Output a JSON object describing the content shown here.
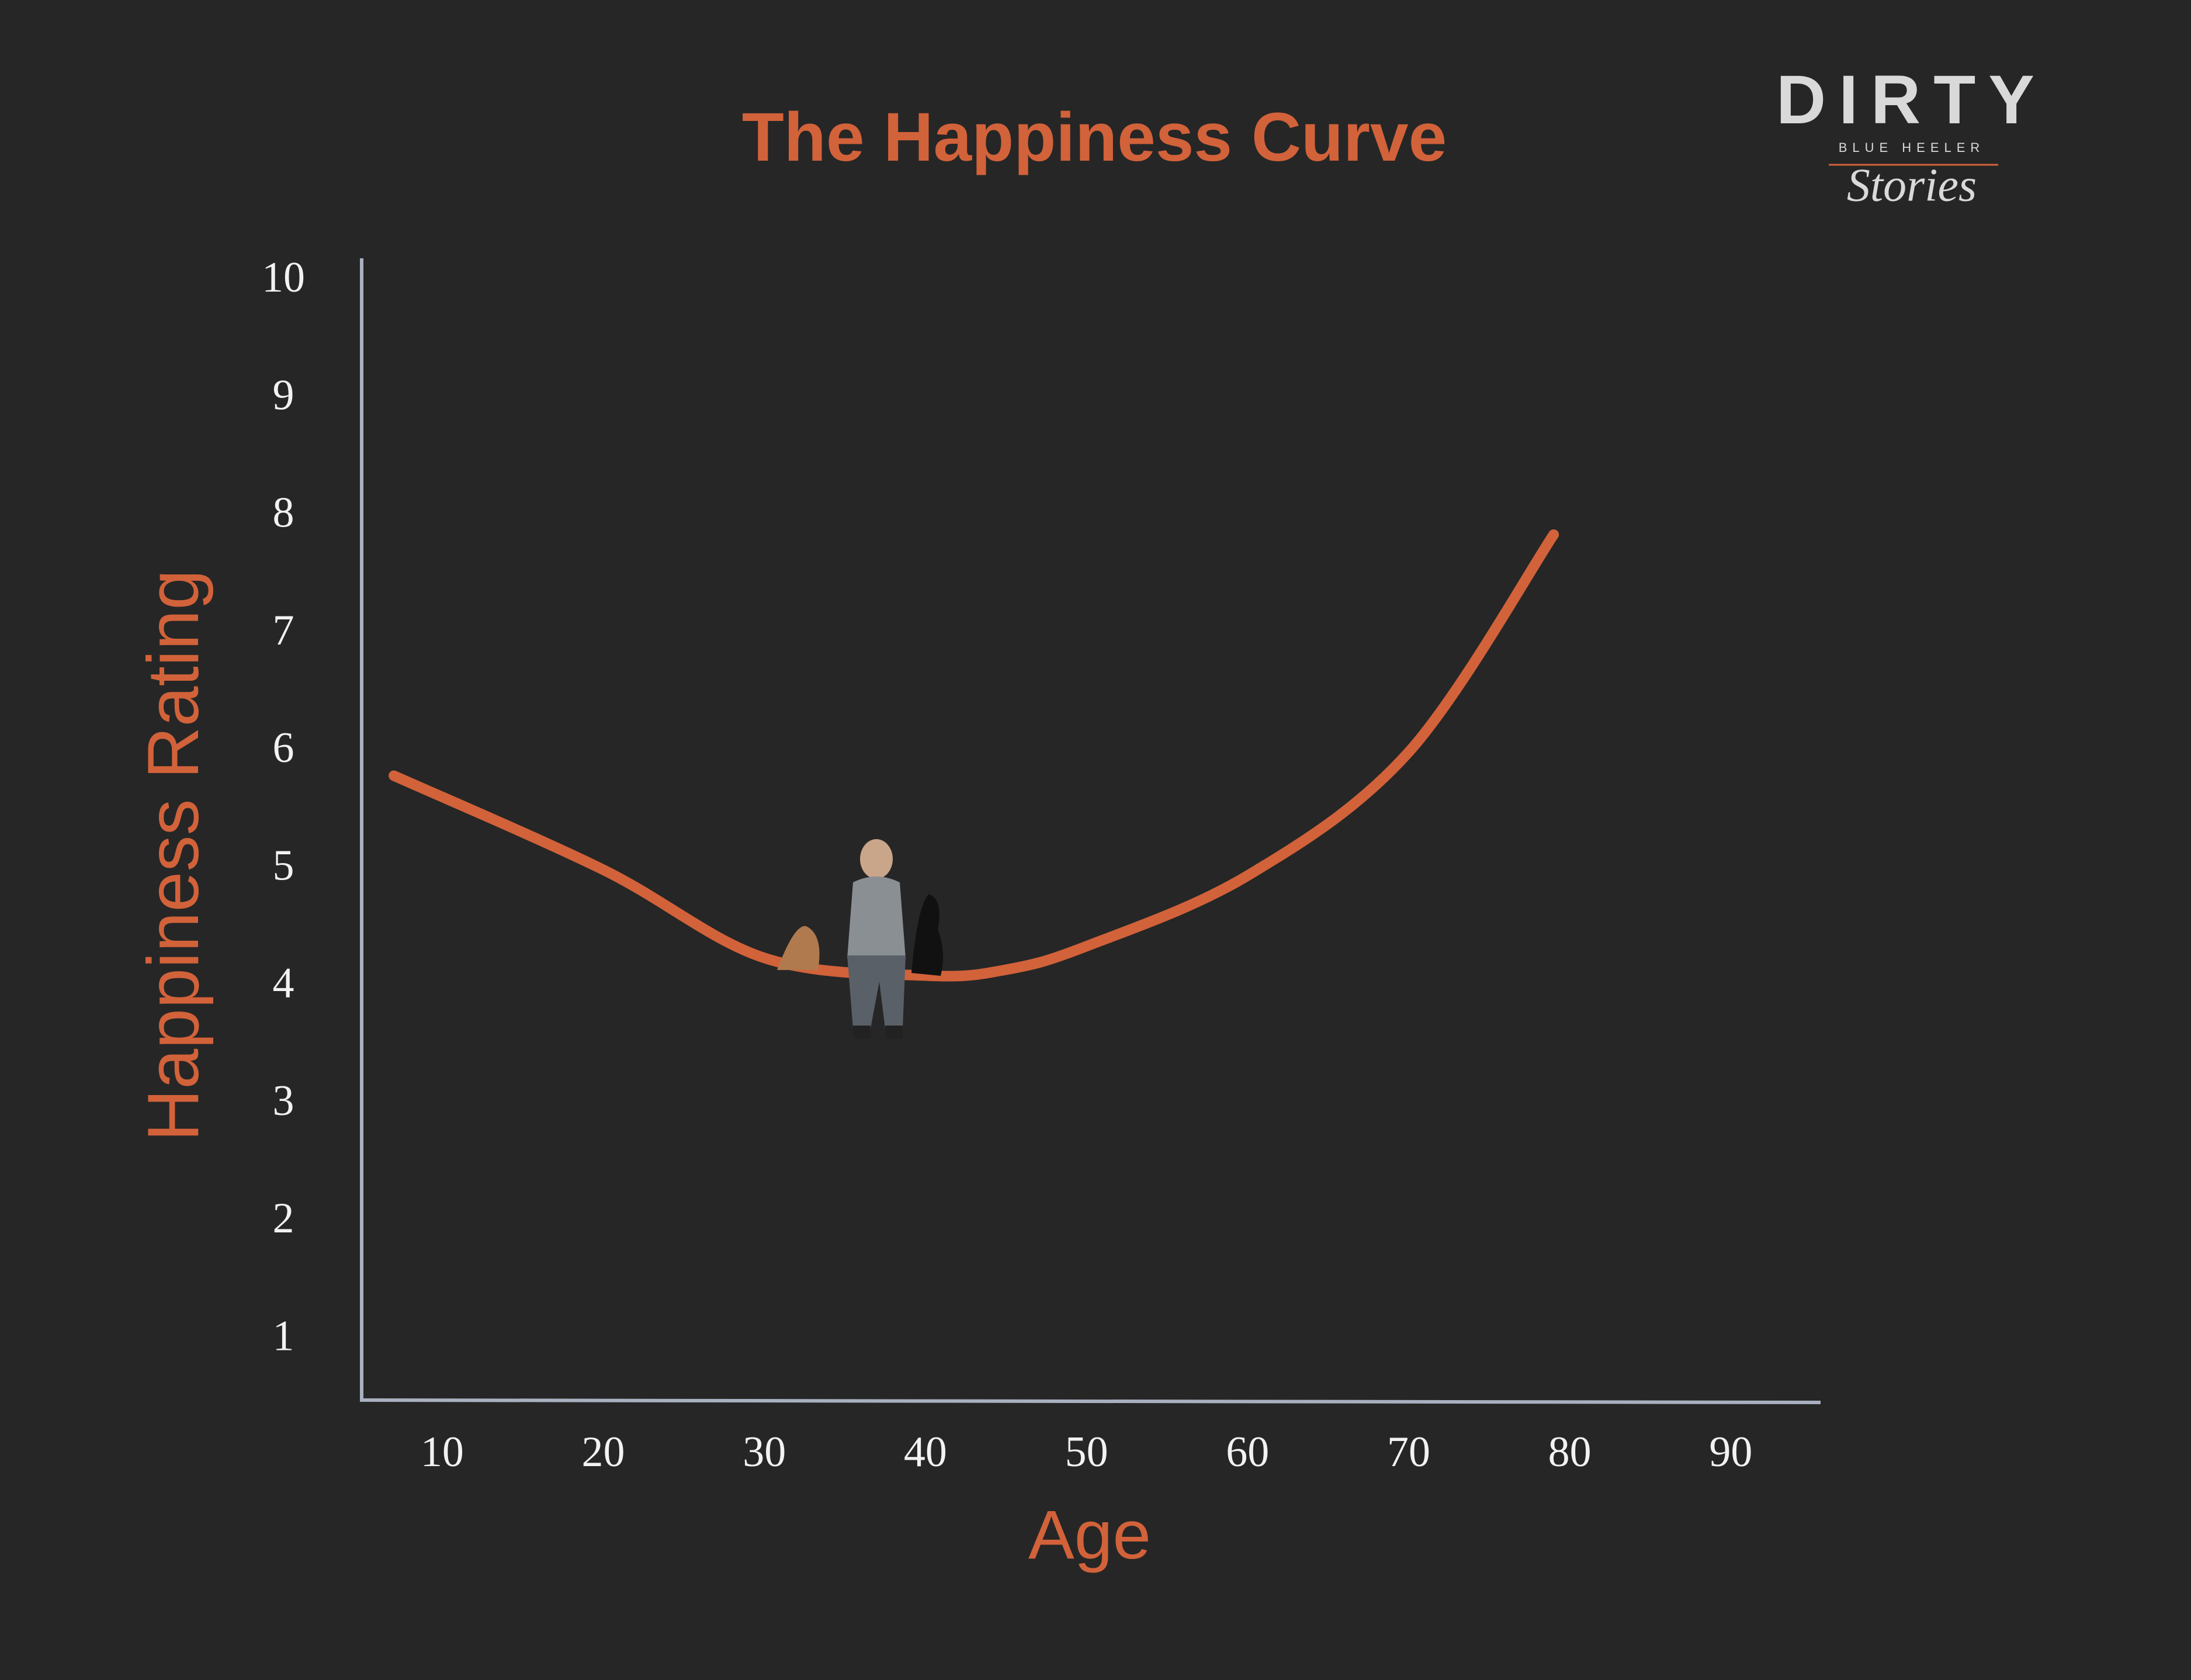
{
  "chart_data": {
    "type": "line",
    "title": "The Happiness Curve",
    "x_label": "Age",
    "y_label": "Happiness Rating",
    "x": [
      7,
      20,
      30,
      40,
      45,
      50,
      60,
      70,
      79
    ],
    "series": [
      {
        "name": "Happiness",
        "color": "#d2623a",
        "values": [
          5.8,
          5.0,
          4.25,
          4.1,
          4.15,
          4.35,
          4.95,
          6.0,
          7.85
        ]
      }
    ],
    "xlim": [
      5,
      95.5
    ],
    "xticks": [
      10,
      20,
      30,
      40,
      50,
      60,
      70,
      80,
      90
    ],
    "ylim": [
      0.5,
      10.2
    ],
    "yticks": [
      1,
      2,
      3,
      4,
      5,
      6,
      7,
      8,
      9,
      10
    ],
    "grid": false
  },
  "logo": {
    "name": "DIRTY",
    "tagline": "BLUE HEELER",
    "script": "Stories"
  }
}
